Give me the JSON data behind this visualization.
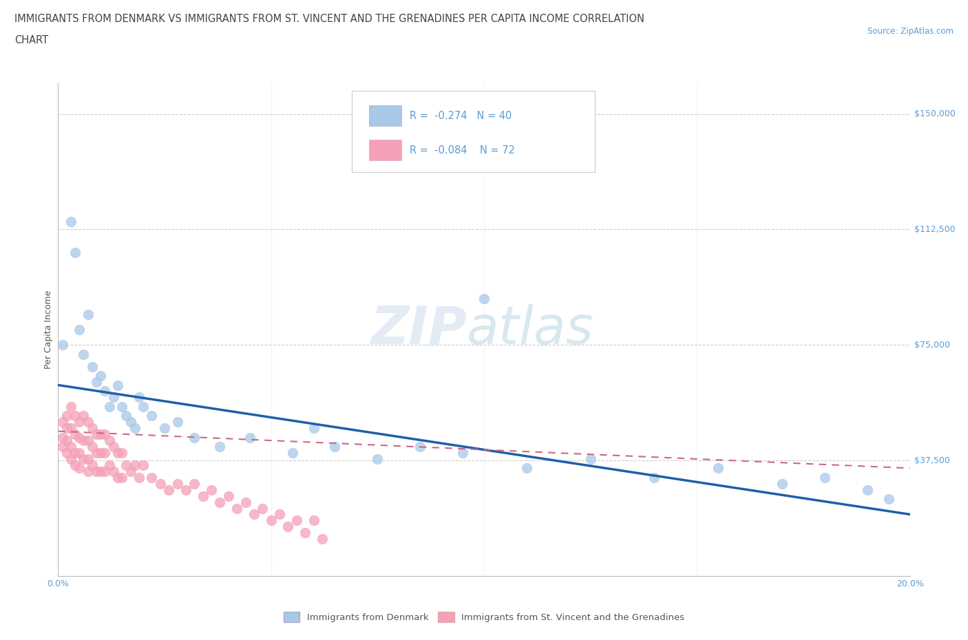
{
  "title_line1": "IMMIGRANTS FROM DENMARK VS IMMIGRANTS FROM ST. VINCENT AND THE GRENADINES PER CAPITA INCOME CORRELATION",
  "title_line2": "CHART",
  "source_text": "Source: ZipAtlas.com",
  "ylabel": "Per Capita Income",
  "xlim": [
    0.0,
    0.2
  ],
  "ylim": [
    0,
    160000
  ],
  "yticks": [
    0,
    37500,
    75000,
    112500,
    150000
  ],
  "ytick_labels": [
    "",
    "$37,500",
    "$75,000",
    "$112,500",
    "$150,000"
  ],
  "legend_bottom_labels": [
    "Immigrants from Denmark",
    "Immigrants from St. Vincent and the Grenadines"
  ],
  "r_denmark": -0.274,
  "n_denmark": 40,
  "r_stv": -0.084,
  "n_stv": 72,
  "color_denmark": "#a8c8e8",
  "color_stv": "#f4a0b8",
  "color_denmark_line": "#1f5faa",
  "color_stv_line": "#cc6688",
  "background_color": "#ffffff",
  "grid_color": "#cccccc",
  "axis_color": "#5b9bd5",
  "denmark_x": [
    0.001,
    0.003,
    0.004,
    0.005,
    0.006,
    0.007,
    0.008,
    0.009,
    0.01,
    0.011,
    0.012,
    0.013,
    0.014,
    0.015,
    0.016,
    0.017,
    0.018,
    0.019,
    0.02,
    0.022,
    0.025,
    0.028,
    0.032,
    0.038,
    0.045,
    0.055,
    0.065,
    0.075,
    0.085,
    0.095,
    0.11,
    0.125,
    0.14,
    0.155,
    0.17,
    0.18,
    0.19,
    0.195,
    0.1,
    0.06
  ],
  "denmark_y": [
    75000,
    115000,
    105000,
    80000,
    72000,
    85000,
    68000,
    63000,
    65000,
    60000,
    55000,
    58000,
    62000,
    55000,
    52000,
    50000,
    48000,
    58000,
    55000,
    52000,
    48000,
    50000,
    45000,
    42000,
    45000,
    40000,
    42000,
    38000,
    42000,
    40000,
    35000,
    38000,
    32000,
    35000,
    30000,
    32000,
    28000,
    25000,
    90000,
    48000
  ],
  "stv_x": [
    0.001,
    0.001,
    0.001,
    0.002,
    0.002,
    0.002,
    0.002,
    0.003,
    0.003,
    0.003,
    0.003,
    0.004,
    0.004,
    0.004,
    0.004,
    0.005,
    0.005,
    0.005,
    0.005,
    0.006,
    0.006,
    0.006,
    0.007,
    0.007,
    0.007,
    0.007,
    0.008,
    0.008,
    0.008,
    0.009,
    0.009,
    0.009,
    0.01,
    0.01,
    0.01,
    0.011,
    0.011,
    0.011,
    0.012,
    0.012,
    0.013,
    0.013,
    0.014,
    0.014,
    0.015,
    0.015,
    0.016,
    0.017,
    0.018,
    0.019,
    0.02,
    0.022,
    0.024,
    0.026,
    0.028,
    0.03,
    0.032,
    0.034,
    0.036,
    0.038,
    0.04,
    0.042,
    0.044,
    0.046,
    0.048,
    0.05,
    0.052,
    0.054,
    0.056,
    0.058,
    0.06,
    0.062
  ],
  "stv_y": [
    50000,
    45000,
    42000,
    52000,
    48000,
    44000,
    40000,
    55000,
    48000,
    42000,
    38000,
    52000,
    46000,
    40000,
    36000,
    50000,
    45000,
    40000,
    35000,
    52000,
    44000,
    38000,
    50000,
    44000,
    38000,
    34000,
    48000,
    42000,
    36000,
    46000,
    40000,
    34000,
    46000,
    40000,
    34000,
    46000,
    40000,
    34000,
    44000,
    36000,
    42000,
    34000,
    40000,
    32000,
    40000,
    32000,
    36000,
    34000,
    36000,
    32000,
    36000,
    32000,
    30000,
    28000,
    30000,
    28000,
    30000,
    26000,
    28000,
    24000,
    26000,
    22000,
    24000,
    20000,
    22000,
    18000,
    20000,
    16000,
    18000,
    14000,
    18000,
    12000
  ]
}
